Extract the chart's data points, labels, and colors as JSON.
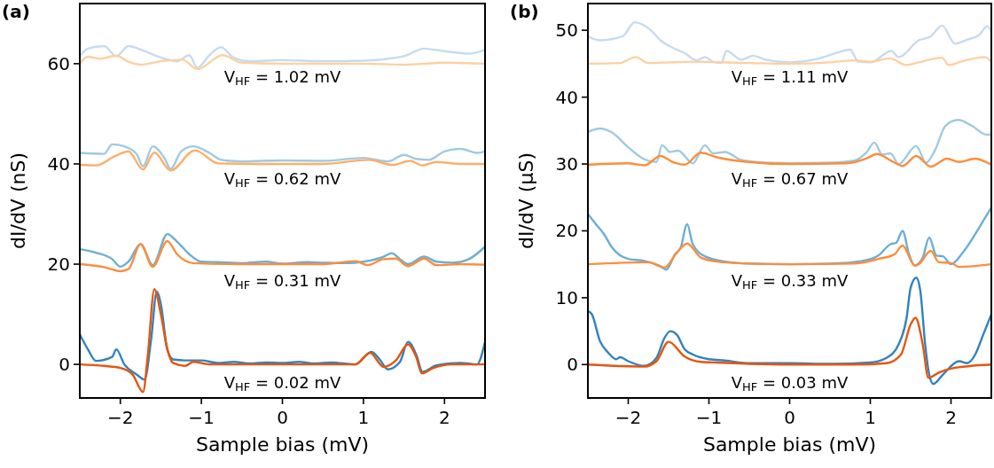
{
  "chart_data": [
    {
      "type": "line",
      "title": "(a)",
      "xlabel": "Sample bias (mV)",
      "ylabel": "dI/dV (nS)",
      "xlim": [
        -2.5,
        2.5
      ],
      "ylim": [
        -6.7,
        72
      ],
      "xticks": [
        -2,
        -1,
        0,
        1,
        2
      ],
      "yticks": [
        0,
        20,
        40,
        60
      ],
      "grid": false,
      "line_style": "solid",
      "marker": "none",
      "annotations": [
        "V$_{HF}$ = 1.02 mV",
        "V$_{HF}$ = 0.62 mV",
        "V$_{HF}$ = 0.31 mV",
        "V$_{HF}$ = 0.02 mV"
      ],
      "series": [
        {
          "color": "#3182bd",
          "x": [
            -2.5,
            -2.4,
            -2.3,
            -2.1,
            -2.05,
            -1.95,
            -1.8,
            -1.7,
            -1.62,
            -1.55,
            -1.5,
            -1.42,
            -1.35,
            -1.2,
            -1,
            -0.8,
            -0.6,
            -0.4,
            -0.2,
            0,
            0.2,
            0.4,
            0.6,
            0.9,
            1.1,
            1.2,
            1.3,
            1.45,
            1.55,
            1.65,
            1.73,
            1.9,
            2.2,
            2.4,
            2.5
          ],
          "values": [
            6,
            3,
            0.7,
            1.5,
            3,
            0,
            -2,
            -3,
            5,
            14.5,
            12,
            3,
            1,
            0.8,
            0.8,
            0.3,
            0.5,
            0.2,
            0.4,
            0.3,
            0.5,
            0.2,
            0.4,
            0,
            2.5,
            1,
            -1,
            0.5,
            4.5,
            2,
            -1.5,
            -0.2,
            0.3,
            0,
            4.5
          ]
        },
        {
          "color": "#e6550d",
          "x": [
            -2.5,
            -2.2,
            -2,
            -1.85,
            -1.72,
            -1.66,
            -1.58,
            -1.5,
            -1.42,
            -1.35,
            -1.2,
            -1.1,
            -0.9,
            -0.5,
            0,
            0.5,
            0.9,
            1.08,
            1.25,
            1.4,
            1.55,
            1.65,
            1.72,
            1.85,
            2.1,
            2.5
          ],
          "values": [
            0,
            -0.3,
            -0.7,
            -2,
            -5.5,
            2,
            15,
            10,
            3,
            0.3,
            -0.3,
            0.5,
            0,
            0,
            0,
            0,
            0,
            2.3,
            -0.5,
            0.8,
            4,
            1.5,
            -1.8,
            -0.8,
            0,
            0
          ]
        },
        {
          "color": "#6baed6",
          "x": [
            -2.5,
            -2.3,
            -2.1,
            -2,
            -1.9,
            -1.75,
            -1.6,
            -1.42,
            -1.3,
            -1.15,
            -1,
            -0.8,
            -0.5,
            -0.2,
            0,
            0.3,
            0.5,
            0.8,
            1,
            1.25,
            1.35,
            1.45,
            1.55,
            1.75,
            1.9,
            2.1,
            2.3,
            2.5
          ],
          "values": [
            23,
            22.3,
            21,
            19.5,
            20.5,
            24,
            19.8,
            26,
            24.5,
            22,
            20.5,
            20.4,
            20.2,
            20.5,
            20.1,
            20.4,
            20.3,
            20.2,
            20.5,
            21.5,
            22.2,
            21,
            20,
            21.5,
            20.5,
            20.3,
            21,
            23.5
          ]
        },
        {
          "color": "#fd8d3c",
          "x": [
            -2.5,
            -2.2,
            -2,
            -1.9,
            -1.75,
            -1.6,
            -1.42,
            -1.3,
            -1.1,
            -0.5,
            0,
            0.5,
            0.9,
            1.05,
            1.25,
            1.4,
            1.55,
            1.75,
            1.9,
            2.2,
            2.5
          ],
          "values": [
            20,
            19.4,
            18.6,
            19,
            24,
            19.5,
            24.6,
            22,
            20.2,
            20,
            20,
            20,
            20.6,
            19.8,
            21,
            21.1,
            19.6,
            21.1,
            19.8,
            20,
            19.9
          ]
        },
        {
          "color": "#9ecae1",
          "x": [
            -2.5,
            -2.2,
            -2.1,
            -1.95,
            -1.8,
            -1.72,
            -1.6,
            -1.45,
            -1.38,
            -1.25,
            -1.1,
            -0.9,
            -0.75,
            -0.5,
            0,
            0.5,
            1,
            1.3,
            1.5,
            1.65,
            1.8,
            2,
            2.2,
            2.4,
            2.5
          ],
          "values": [
            42.2,
            42,
            43.9,
            43.5,
            42,
            39.5,
            43.5,
            41,
            39,
            42.5,
            43.5,
            42.2,
            40.8,
            40.5,
            40.7,
            40.6,
            41.2,
            40.5,
            41.8,
            41,
            40.8,
            42.5,
            43,
            42.2,
            42.5
          ]
        },
        {
          "color": "#fdae6b",
          "x": [
            -2.5,
            -2.3,
            -2.07,
            -1.9,
            -1.72,
            -1.58,
            -1.38,
            -1.08,
            -0.79,
            -0.3,
            0.5,
            1.07,
            1.36,
            1.58,
            1.72,
            1.9,
            2.2,
            2.5
          ],
          "values": [
            39.8,
            39.7,
            41.5,
            42.5,
            38.9,
            42.3,
            38.7,
            42.7,
            40.1,
            40,
            40,
            40.8,
            39.8,
            40.6,
            39.7,
            40.4,
            40,
            40
          ]
        },
        {
          "color": "#c6dbef",
          "x": [
            -2.5,
            -2.4,
            -2.2,
            -2.05,
            -1.9,
            -1.7,
            -1.55,
            -1.3,
            -1.15,
            -1.05,
            -0.9,
            -0.76,
            -0.6,
            -0.4,
            0,
            0.5,
            1,
            1.3,
            1.5,
            1.75,
            2,
            2.3,
            2.5
          ],
          "values": [
            61.5,
            63,
            63.5,
            61.5,
            63.5,
            62.5,
            61.5,
            60.5,
            61.7,
            59.2,
            61.7,
            63.3,
            61.2,
            60.5,
            60.7,
            60.5,
            60.6,
            61,
            61.5,
            63,
            62.5,
            62,
            62.8
          ]
        },
        {
          "color": "#fdd0a2",
          "x": [
            -2.5,
            -2.4,
            -2.25,
            -2.05,
            -1.9,
            -1.75,
            -1.5,
            -1.23,
            -1.05,
            -0.74,
            -0.5,
            0,
            1,
            1.5,
            2,
            2.5
          ],
          "values": [
            60,
            61.4,
            61,
            61.6,
            60.4,
            59.8,
            60.5,
            60.8,
            58.9,
            61.7,
            60.2,
            60,
            60,
            59.8,
            60.2,
            60
          ]
        }
      ]
    },
    {
      "type": "line",
      "title": "(b)",
      "xlabel": "Sample bias (mV)",
      "ylabel": "dI/dV (µS)",
      "xlim": [
        -2.5,
        2.5
      ],
      "ylim": [
        -5,
        54
      ],
      "xticks": [
        -2,
        -1,
        0,
        1,
        2
      ],
      "yticks": [
        0,
        10,
        20,
        30,
        40,
        50
      ],
      "grid": false,
      "line_style": "solid",
      "marker": "none",
      "annotations": [
        "V$_{HF}$ = 1.11 mV",
        "V$_{HF}$ = 0.67 mV",
        "V$_{HF}$ = 0.33 mV",
        "V$_{HF}$ = 0.03 mV"
      ],
      "series": [
        {
          "color": "#3182bd",
          "x": [
            -2.5,
            -2.45,
            -2.35,
            -2.25,
            -2.15,
            -2.1,
            -2,
            -1.8,
            -1.65,
            -1.55,
            -1.48,
            -1.4,
            -1.3,
            -1.2,
            -1,
            -0.8,
            -0.5,
            0,
            0.5,
            1,
            1.2,
            1.35,
            1.45,
            1.5,
            1.57,
            1.62,
            1.68,
            1.73,
            1.78,
            1.9,
            2.1,
            2.2,
            2.3,
            2.4,
            2.5
          ],
          "values": [
            8,
            7.5,
            3.5,
            1.8,
            0.8,
            1.1,
            0.5,
            -0.2,
            1,
            4,
            5,
            4.5,
            2.3,
            1.5,
            0.8,
            0.6,
            0.2,
            0.2,
            0.1,
            0.3,
            1,
            3,
            7,
            11.5,
            13,
            11,
            3,
            -1.5,
            -2.9,
            -1.5,
            0.5,
            0.2,
            1.5,
            4.5,
            7.5
          ]
        },
        {
          "color": "#e6550d",
          "x": [
            -2.5,
            -1.8,
            -1.65,
            -1.5,
            -1.3,
            -1.1,
            -0.9,
            -0.5,
            0,
            0.8,
            1.2,
            1.38,
            1.5,
            1.56,
            1.65,
            1.72,
            1.85,
            2,
            2.5
          ],
          "values": [
            0,
            -0.3,
            0.5,
            3.4,
            1.2,
            0.4,
            0.3,
            0.1,
            0,
            0,
            0.2,
            1.5,
            6,
            7,
            3,
            -2,
            -1.2,
            -0.6,
            0
          ]
        },
        {
          "color": "#6baed6",
          "x": [
            -2.5,
            -2.4,
            -2.3,
            -2.2,
            -2,
            -1.8,
            -1.6,
            -1.53,
            -1.42,
            -1.35,
            -1.27,
            -1.2,
            -1.05,
            -0.8,
            -0.5,
            0,
            0.5,
            0.9,
            1.1,
            1.25,
            1.32,
            1.4,
            1.48,
            1.55,
            1.65,
            1.73,
            1.82,
            1.9,
            2,
            2.15,
            2.3,
            2.45,
            2.5
          ],
          "values": [
            22.5,
            21,
            19.5,
            17.5,
            15.8,
            15.5,
            14.7,
            14.2,
            16.5,
            17.5,
            21,
            18,
            16.2,
            15.4,
            15.1,
            15,
            15.1,
            15.5,
            16.3,
            18,
            18.2,
            20,
            16.5,
            14.8,
            16,
            19,
            16.3,
            16.2,
            15,
            16.8,
            19.5,
            22.5,
            23.5
          ]
        },
        {
          "color": "#fd8d3c",
          "x": [
            -2.5,
            -1.75,
            -1.55,
            -1.4,
            -1.27,
            -1.1,
            -0.9,
            -0.5,
            0,
            0.8,
            1.1,
            1.3,
            1.4,
            1.55,
            1.6,
            1.75,
            1.85,
            2,
            2.1,
            2.5
          ],
          "values": [
            15,
            15.3,
            14.5,
            16.7,
            18.1,
            16,
            15.4,
            15.1,
            15,
            15.1,
            15.8,
            16.5,
            17.8,
            14.8,
            15,
            17,
            15.3,
            15.2,
            14.6,
            15
          ]
        },
        {
          "color": "#9ecae1",
          "x": [
            -2.5,
            -2.35,
            -2.2,
            -2,
            -1.8,
            -1.65,
            -1.58,
            -1.48,
            -1.38,
            -1.2,
            -1.05,
            -0.95,
            -0.8,
            -0.6,
            -0.3,
            0,
            0.5,
            0.8,
            0.95,
            1.05,
            1.15,
            1.25,
            1.35,
            1.57,
            1.69,
            1.8,
            1.93,
            2.09,
            2.26,
            2.44,
            2.5
          ],
          "values": [
            34.8,
            35.3,
            34.7,
            32.5,
            30.7,
            30.3,
            32.8,
            31.8,
            32,
            30.1,
            32.8,
            31.6,
            31.8,
            30.6,
            30.2,
            30.1,
            30.2,
            30.5,
            31.7,
            33.2,
            31.4,
            31.6,
            30,
            32.7,
            30.2,
            32,
            35.7,
            36.6,
            35.7,
            34.4,
            34.4
          ]
        },
        {
          "color": "#fd8d3c",
          "x": [
            -2.5,
            -2,
            -1.8,
            -1.6,
            -1.45,
            -1.3,
            -1.1,
            -0.9,
            -0.6,
            0,
            0.7,
            0.95,
            1.08,
            1.3,
            1.4,
            1.57,
            1.75,
            1.95,
            2.1,
            2.3,
            2.5
          ],
          "values": [
            29.9,
            30.1,
            29.8,
            31.2,
            30.3,
            29.9,
            31.7,
            31,
            30.4,
            30,
            30.1,
            30.8,
            31.5,
            30.2,
            29.7,
            31.2,
            29.6,
            30.8,
            30.3,
            30.8,
            29.9
          ]
        },
        {
          "color": "#c6dbef",
          "x": [
            -2.5,
            -2.35,
            -2.07,
            -1.92,
            -1.71,
            -1.6,
            -1.45,
            -1.3,
            -1.15,
            -1.05,
            -0.95,
            -0.85,
            -0.78,
            -0.6,
            -0.45,
            -0.3,
            0,
            0.3,
            0.5,
            0.6,
            0.75,
            0.85,
            1,
            1.26,
            1.35,
            1.6,
            1.75,
            1.89,
            2.05,
            2.2,
            2.35,
            2.45,
            2.5
          ],
          "values": [
            49.1,
            48.5,
            49.1,
            51.2,
            49.9,
            48.5,
            47.4,
            46.6,
            45.5,
            46,
            45.3,
            45.1,
            46.9,
            45.6,
            46.2,
            45.6,
            45.2,
            45.6,
            46.3,
            46.7,
            47.1,
            45.3,
            45.2,
            46.9,
            46,
            48.5,
            49.1,
            50.7,
            48,
            48.6,
            49.3,
            50.6,
            49.8
          ]
        },
        {
          "color": "#fdd0a2",
          "x": [
            -2.5,
            -2.1,
            -1.91,
            -1.75,
            -1.2,
            -0.5,
            0,
            0.5,
            0.8,
            1,
            1.24,
            1.45,
            1.6,
            1.89,
            1.97,
            2.15,
            2.42,
            2.5
          ],
          "values": [
            45,
            45.1,
            46,
            45.1,
            45.3,
            45.1,
            45,
            45.2,
            45.5,
            45.3,
            45.8,
            44.8,
            45.2,
            45.9,
            44.8,
            45.4,
            46,
            45.3
          ]
        }
      ]
    }
  ]
}
